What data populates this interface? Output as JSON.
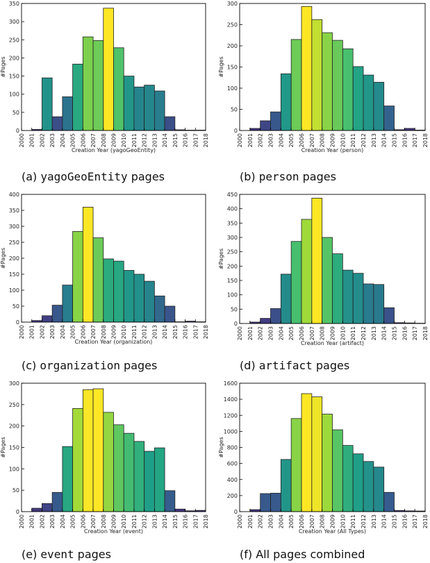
{
  "palette": [
    "#46327e",
    "#365c8d",
    "#277f8e",
    "#1fa187",
    "#4ac16d",
    "#a0da39",
    "#fde725"
  ],
  "chart_data": [
    {
      "type": "bar",
      "caption_prefix": "(a) ",
      "caption_code": "yagoGeoEntity",
      "caption_suffix": " pages",
      "xlabel": "Creation Year (yagoGeoEntity)",
      "ylabel": "#Pages",
      "categories": [
        "2000",
        "2001",
        "2002",
        "2003",
        "2004",
        "2005",
        "2006",
        "2007",
        "2008",
        "2009",
        "2010",
        "2011",
        "2012",
        "2013",
        "2014",
        "2015",
        "2016",
        "2017",
        "2018"
      ],
      "values": [
        0,
        3,
        145,
        38,
        93,
        183,
        258,
        248,
        337,
        228,
        150,
        120,
        125,
        109,
        38,
        2,
        1,
        1,
        1
      ],
      "ylim": [
        0,
        350
      ],
      "yticks": [
        0,
        50,
        100,
        150,
        200,
        250,
        300,
        350
      ]
    },
    {
      "type": "bar",
      "caption_prefix": "(b) ",
      "caption_code": "person",
      "caption_suffix": " pages",
      "xlabel": "Creation Year (person)",
      "ylabel": "#Pages",
      "categories": [
        "2000",
        "2001",
        "2002",
        "2003",
        "2004",
        "2005",
        "2006",
        "2007",
        "2008",
        "2009",
        "2010",
        "2011",
        "2012",
        "2013",
        "2014",
        "2015",
        "2016",
        "2017",
        "2018"
      ],
      "values": [
        0,
        5,
        23,
        44,
        134,
        215,
        293,
        262,
        231,
        213,
        193,
        151,
        131,
        114,
        58,
        2,
        5,
        1,
        1
      ],
      "ylim": [
        0,
        300
      ],
      "yticks": [
        0,
        50,
        100,
        150,
        200,
        250,
        300
      ]
    },
    {
      "type": "bar",
      "caption_prefix": "(c) ",
      "caption_code": "organization",
      "caption_suffix": " pages",
      "xlabel": "Creation Year (organization)",
      "ylabel": "#Pages",
      "categories": [
        "2000",
        "2001",
        "2002",
        "2003",
        "2004",
        "2005",
        "2006",
        "2007",
        "2008",
        "2009",
        "2010",
        "2011",
        "2012",
        "2013",
        "2014",
        "2015",
        "2016",
        "2017",
        "2018"
      ],
      "values": [
        0,
        5,
        20,
        53,
        116,
        284,
        360,
        264,
        198,
        191,
        162,
        150,
        128,
        82,
        50,
        1,
        3,
        1,
        2
      ],
      "ylim": [
        0,
        400
      ],
      "yticks": [
        0,
        50,
        100,
        150,
        200,
        250,
        300,
        350,
        400
      ]
    },
    {
      "type": "bar",
      "caption_prefix": "(d) ",
      "caption_code": "artifact",
      "caption_suffix": " pages",
      "xlabel": "Creation Year (artifact)",
      "ylabel": "#Pages",
      "categories": [
        "2000",
        "2001",
        "2002",
        "2003",
        "2004",
        "2005",
        "2006",
        "2007",
        "2008",
        "2009",
        "2010",
        "2011",
        "2012",
        "2013",
        "2014",
        "2015",
        "2016",
        "2017",
        "2018"
      ],
      "values": [
        0,
        5,
        18,
        52,
        172,
        286,
        363,
        437,
        300,
        243,
        186,
        175,
        138,
        136,
        55,
        3,
        2,
        1,
        1
      ],
      "ylim": [
        0,
        450
      ],
      "yticks": [
        0,
        50,
        100,
        150,
        200,
        250,
        300,
        350,
        400,
        450
      ]
    },
    {
      "type": "bar",
      "caption_prefix": "(e) ",
      "caption_code": "event",
      "caption_suffix": " pages",
      "xlabel": "Creation Year (event)",
      "ylabel": "#Pages",
      "categories": [
        "2000",
        "2001",
        "2002",
        "2003",
        "2004",
        "2005",
        "2006",
        "2007",
        "2008",
        "2009",
        "2010",
        "2011",
        "2012",
        "2013",
        "2014",
        "2015",
        "2016",
        "2017",
        "2018"
      ],
      "values": [
        0,
        8,
        19,
        45,
        152,
        241,
        285,
        287,
        232,
        203,
        183,
        164,
        141,
        149,
        49,
        6,
        2,
        3,
        2
      ],
      "ylim": [
        0,
        300
      ],
      "yticks": [
        0,
        50,
        100,
        150,
        200,
        250,
        300
      ]
    },
    {
      "type": "bar",
      "caption_prefix": "(f) All pages combined",
      "caption_code": "",
      "caption_suffix": "",
      "xlabel": "Creation Year (All Types)",
      "ylabel": "#Pages",
      "categories": [
        "2000",
        "2001",
        "2002",
        "2003",
        "2004",
        "2005",
        "2006",
        "2007",
        "2008",
        "2009",
        "2010",
        "2011",
        "2012",
        "2013",
        "2014",
        "2015",
        "2016",
        "2017",
        "2018"
      ],
      "values": [
        0,
        25,
        225,
        230,
        650,
        1160,
        1470,
        1430,
        1215,
        1020,
        825,
        720,
        625,
        555,
        240,
        15,
        10,
        8,
        8
      ],
      "ylim": [
        0,
        1600
      ],
      "yticks": [
        0,
        200,
        400,
        600,
        800,
        1000,
        1200,
        1400,
        1600
      ]
    }
  ]
}
